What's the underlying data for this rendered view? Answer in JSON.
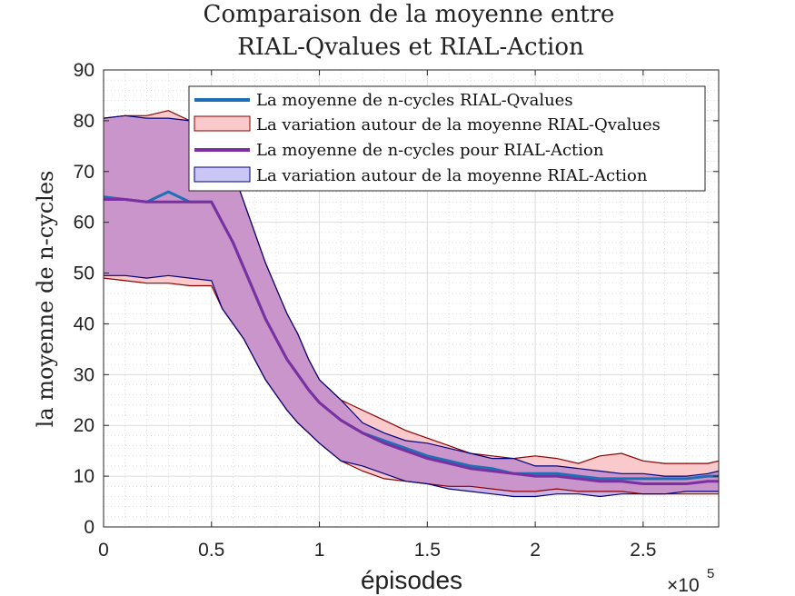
{
  "chart_data": {
    "type": "area",
    "title": [
      "Comparaison de la moyenne entre",
      "RIAL-Qvalues et RIAL-Action"
    ],
    "xlabel": "épisodes",
    "ylabel": "la moyenne de n-cycles",
    "x_multiplier_label": "×10",
    "x_multiplier_exponent": "5",
    "xlim": [
      0,
      2.85
    ],
    "ylim": [
      0,
      90
    ],
    "xticks": [
      0,
      0.5,
      1,
      1.5,
      2,
      2.5
    ],
    "xtick_labels": [
      "0",
      "0.5",
      "1",
      "1.5",
      "2",
      "2.5"
    ],
    "yticks": [
      0,
      10,
      20,
      30,
      40,
      50,
      60,
      70,
      80,
      90
    ],
    "ytick_labels": [
      "0",
      "10",
      "20",
      "30",
      "40",
      "50",
      "60",
      "70",
      "80",
      "90"
    ],
    "grid": true,
    "minor_grid": true,
    "legend_position": "top-right",
    "legend": [
      {
        "label": "La moyenne de n-cycles RIAL-Qvalues",
        "kind": "line",
        "color": "#1f6fb4"
      },
      {
        "label": "La variation autour de la moyenne RIAL-Qvalues",
        "kind": "patch",
        "fill": "#f9c9cc",
        "stroke": "#8b0000"
      },
      {
        "label": "La moyenne de n-cycles pour RIAL-Action",
        "kind": "line",
        "color": "#7b2fa0"
      },
      {
        "label": "La variation autour de la moyenne RIAL-Action",
        "kind": "patch",
        "fill": "#c9c6f5",
        "stroke": "#00007a"
      }
    ],
    "x": [
      0,
      0.1,
      0.2,
      0.3,
      0.4,
      0.5,
      0.55,
      0.6,
      0.65,
      0.7,
      0.75,
      0.8,
      0.85,
      0.9,
      0.95,
      1.0,
      1.1,
      1.2,
      1.3,
      1.4,
      1.5,
      1.6,
      1.7,
      1.8,
      1.9,
      2.0,
      2.1,
      2.2,
      2.3,
      2.4,
      2.5,
      2.6,
      2.7,
      2.8,
      2.85
    ],
    "series": [
      {
        "name": "La moyenne de n-cycles RIAL-Qvalues",
        "color": "#1f6fb4",
        "mean": [
          65,
          64.5,
          64,
          66,
          64,
          64,
          60,
          56,
          51,
          46,
          41,
          37,
          33,
          30,
          27,
          24.5,
          21,
          18.5,
          17,
          15.5,
          14,
          13,
          12,
          11.5,
          10.5,
          10.5,
          10.5,
          10,
          9.5,
          9.5,
          9.5,
          9.5,
          9.5,
          10,
          10
        ],
        "upper": [
          80.5,
          81,
          81,
          82,
          80,
          80,
          76,
          70,
          64,
          58,
          52,
          47,
          42,
          38,
          33,
          29,
          25,
          23,
          21,
          19,
          17.5,
          16,
          14.5,
          14,
          13.5,
          14,
          13.5,
          12.5,
          14,
          14.5,
          13,
          12.5,
          12.5,
          12.5,
          13
        ],
        "lower": [
          49,
          48.5,
          48,
          48,
          47.5,
          47.5,
          43,
          40,
          37,
          33,
          29,
          26,
          23,
          20.5,
          18.5,
          16.5,
          13,
          11,
          9.5,
          9,
          8.5,
          8,
          8,
          7.5,
          7,
          7,
          7.5,
          7,
          7,
          7,
          6.5,
          6.5,
          6.5,
          6.5,
          6.5
        ]
      },
      {
        "name": "La moyenne de n-cycles pour RIAL-Action",
        "color": "#7b2fa0",
        "mean": [
          64.5,
          64.5,
          64,
          64,
          64,
          64,
          60,
          56,
          51,
          46,
          41,
          37,
          33,
          30,
          27,
          24.5,
          21,
          18.5,
          16.5,
          15,
          13.5,
          12.5,
          11.5,
          11,
          10.5,
          10,
          10,
          9.5,
          9,
          9,
          8.5,
          8.5,
          8.5,
          9,
          9
        ],
        "upper": [
          80.5,
          81,
          80.5,
          80.5,
          80,
          80,
          76,
          70,
          64,
          58,
          52,
          47,
          42,
          38,
          33,
          29,
          25,
          20.5,
          18.5,
          17,
          16.5,
          15.5,
          14.5,
          13.5,
          13.5,
          12,
          12,
          11.5,
          11,
          10.5,
          10.5,
          10,
          10,
          10.5,
          11
        ],
        "lower": [
          49.5,
          49.5,
          49,
          49.5,
          49,
          48.5,
          43,
          40,
          37,
          33,
          29,
          26,
          23,
          20.5,
          18.5,
          16.5,
          13,
          12,
          10.5,
          9,
          8.5,
          7.5,
          7,
          6.5,
          6,
          6,
          6.5,
          6.5,
          6,
          6.5,
          6.5,
          6.5,
          7,
          7,
          7
        ]
      }
    ]
  },
  "colors": {
    "qvalues_line": "#1f6fb4",
    "qvalues_band_fill": "#f9c9cc",
    "qvalues_band_edge": "#8b0000",
    "action_line": "#7b2fa0",
    "action_band_fill": "#c9c6f5",
    "action_band_edge": "#00007a",
    "overlap_fill": "#c4a2d9"
  }
}
